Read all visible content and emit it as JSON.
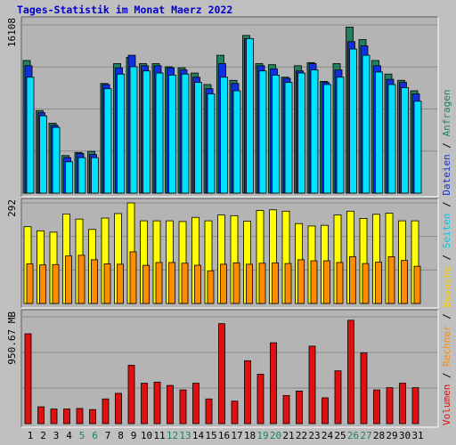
{
  "title": "Tages-Statistik im Monat Maerz 2022",
  "colors": {
    "background": "#c0c0c0",
    "plot_bg": "#b4b4b4",
    "anfragen": "#208060",
    "dateien": "#1030e0",
    "seiten": "#00e0ff",
    "besuche": "#ffff00",
    "rechner": "#ff8c00",
    "volumen": "#e01010",
    "title": "#0000cc",
    "weekend_label": "#208060",
    "weekday_label": "#000000"
  },
  "y_axis_labels": {
    "top": "16108",
    "middle": "292",
    "bottom": "950.67 MB"
  },
  "legend": {
    "volumen": "Volumen",
    "rechner": "Rechner",
    "besuche": "Besuche",
    "seiten": "Seiten",
    "dateien": "Dateien",
    "anfragen": "Anfragen",
    "sep": " / "
  },
  "chart_data": {
    "type": "bar",
    "title": "Tages-Statistik im Monat Maerz 2022",
    "categories": [
      "1",
      "2",
      "3",
      "4",
      "5",
      "6",
      "7",
      "8",
      "9",
      "10",
      "11",
      "12",
      "13",
      "14",
      "15",
      "16",
      "17",
      "18",
      "19",
      "20",
      "21",
      "22",
      "23",
      "24",
      "25",
      "26",
      "27",
      "28",
      "29",
      "30",
      "31"
    ],
    "weekend_days": [
      "5",
      "6",
      "12",
      "13",
      "19",
      "20",
      "26",
      "27"
    ],
    "panels": [
      {
        "name": "hits",
        "ylim": [
          0,
          16108
        ],
        "series": [
          {
            "name": "Anfragen",
            "values": [
              12700,
              7900,
              6700,
              3600,
              3900,
              4000,
              10500,
              12400,
              13000,
              12400,
              12400,
              12100,
              12000,
              11500,
              10400,
              13200,
              10800,
              15100,
              12400,
              12300,
              11100,
              12200,
              12500,
              10700,
              12400,
              15900,
              14700,
              12700,
              11400,
              10800,
              9800
            ]
          },
          {
            "name": "Dateien",
            "values": [
              12200,
              7700,
              6500,
              3400,
              3800,
              3700,
              10400,
              12000,
              13200,
              12200,
              12200,
              12000,
              11800,
              11100,
              10000,
              12400,
              10500,
              14800,
              12200,
              11900,
              11000,
              11700,
              12400,
              10600,
              11800,
              14500,
              14100,
              12200,
              10900,
              10600,
              9500
            ]
          },
          {
            "name": "Seiten",
            "values": [
              11100,
              7400,
              6300,
              3000,
              3400,
              3400,
              10000,
              11400,
              12100,
              11700,
              11500,
              11300,
              11400,
              10600,
              9500,
              11100,
              9800,
              14800,
              11700,
              11300,
              10600,
              11500,
              11800,
              10400,
              11100,
              13800,
              13200,
              11600,
              10400,
              10100,
              8800
            ]
          }
        ]
      },
      {
        "name": "visits",
        "ylim": [
          0,
          292
        ],
        "series": [
          {
            "name": "Besuche",
            "values": [
              223,
              211,
              207,
              260,
              245,
              215,
              248,
              261,
              292,
              240,
              240,
              240,
              238,
              250,
              240,
              257,
              255,
              239,
              270,
              272,
              268,
              232,
              225,
              227,
              257,
              268,
              247,
              259,
              262,
              240,
              240
            ]
          },
          {
            "name": "Rechner",
            "values": [
              115,
              112,
              113,
              138,
              140,
              127,
              115,
              114,
              150,
              111,
              119,
              119,
              117,
              111,
              95,
              114,
              118,
              114,
              117,
              118,
              116,
              127,
              124,
              124,
              119,
              136,
              116,
              120,
              136,
              125,
              108
            ]
          }
        ]
      },
      {
        "name": "volume",
        "ylim": [
          0,
          950.67
        ],
        "unit": "MB",
        "series": [
          {
            "name": "Volumen",
            "values": [
              800,
              150,
              130,
              130,
              135,
              125,
              220,
              270,
              520,
              360,
              370,
              340,
              300,
              360,
              220,
              890,
              200,
              560,
              440,
              720,
              250,
              290,
              690,
              230,
              470,
              920,
              630,
              300,
              320,
              360,
              320
            ]
          }
        ]
      }
    ]
  }
}
